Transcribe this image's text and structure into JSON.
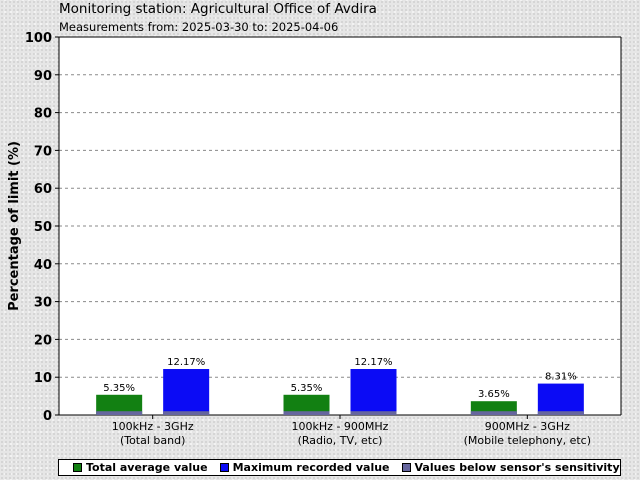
{
  "header": {
    "title": "Monitoring station: Agricultural Office of Avdira",
    "subtitle": "Measurements from: 2025-03-30 to: 2025-04-06"
  },
  "colors": {
    "average": "#128012",
    "maximum": "#0b0bf5",
    "below_sensitivity": "#66669e",
    "plot_background": "#ffffff"
  },
  "chart_data": {
    "type": "bar",
    "title": "Monitoring station: Agricultural Office of Avdira",
    "subtitle": "Measurements from: 2025-03-30 to: 2025-04-06",
    "xlabel": "",
    "ylabel": "Percentage of limit (%)",
    "ylim": [
      0,
      100
    ],
    "yticks": [
      0,
      10,
      20,
      30,
      40,
      50,
      60,
      70,
      80,
      90,
      100
    ],
    "grid": true,
    "legend_position": "bottom",
    "categories": [
      [
        "100kHz - 3GHz",
        "(Total band)"
      ],
      [
        "100kHz - 900MHz",
        "(Radio, TV, etc)"
      ],
      [
        "900MHz - 3GHz",
        "(Mobile telephony, etc)"
      ]
    ],
    "series": [
      {
        "name": "Total average value",
        "values": [
          5.35,
          5.35,
          3.65
        ],
        "labels": [
          "5.35%",
          "5.35%",
          "3.65%"
        ]
      },
      {
        "name": "Maximum recorded value",
        "values": [
          12.17,
          12.17,
          8.31
        ],
        "labels": [
          "12.17%",
          "12.17%",
          "8.31%"
        ]
      }
    ],
    "sensor_sensitivity_level": 1,
    "legend": [
      "Total average value",
      "Maximum recorded value",
      "Values below sensor's sensitivity"
    ]
  }
}
